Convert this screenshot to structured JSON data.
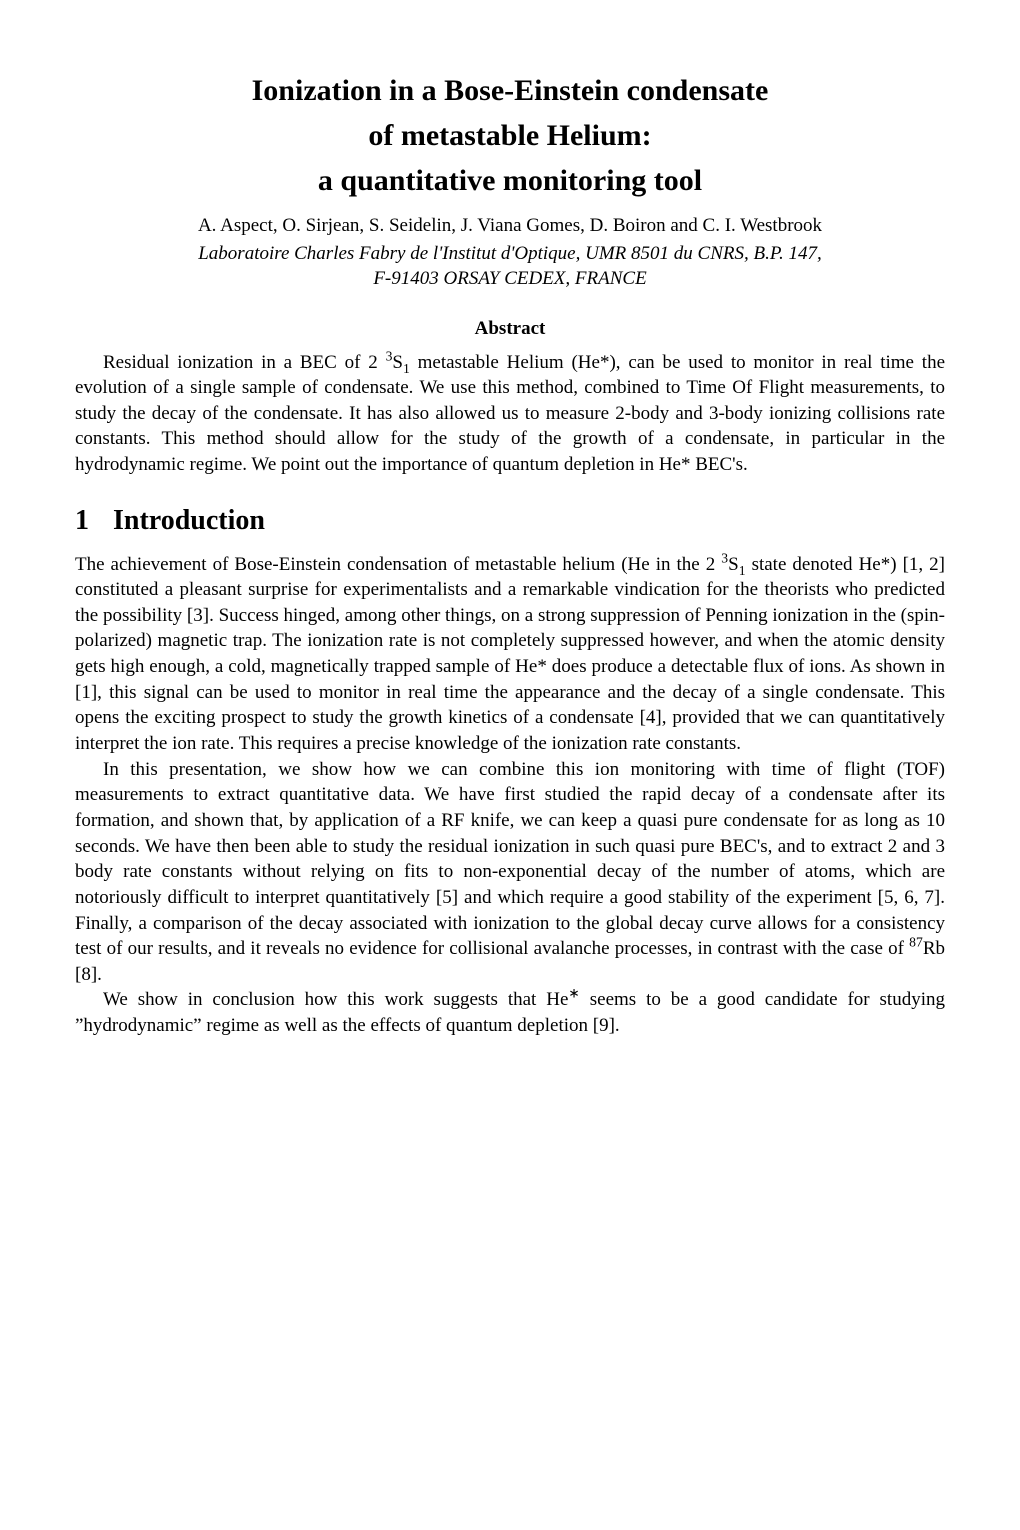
{
  "title_line1": "Ionization in a Bose-Einstein condensate",
  "title_line2": "of metastable Helium:",
  "title_line3": "a quantitative monitoring tool",
  "authors": "A. Aspect, O. Sirjean, S. Seidelin, J. Viana Gomes, D. Boiron and C. I. Westbrook",
  "affil_line1": "Laboratoire Charles Fabry de l'Institut d'Optique, UMR 8501 du CNRS, B.P. 147,",
  "affil_line2": "F-91403 ORSAY CEDEX, FRANCE",
  "abstract_label": "Abstract",
  "abstract_pre": "Residual ionization in a BEC of 2 ",
  "abstract_state": "S",
  "abstract_post": " metastable Helium (He*), can be used to monitor in real time the evolution of a single sample of condensate. We use this method, combined to Time Of Flight measurements, to study the decay of the condensate. It has also allowed us to measure 2-body and 3-body ionizing collisions rate constants. This method should allow for the study of the growth of a condensate, in particular in the hydrodynamic regime. We point out the importance of quantum depletion in He* BEC's.",
  "section_num": "1",
  "section_title": "Introduction",
  "p1_pre": "The achievement of Bose-Einstein condensation of metastable helium (He in the 2 ",
  "p1_state": "S",
  "p1_post": " state denoted He*) [1, 2] constituted a pleasant surprise for experimentalists and a remarkable vindication for the theorists who predicted the possibility [3]. Success hinged, among other things, on a strong suppression of Penning ionization in the (spin-polarized) magnetic trap. The ionization rate is not completely suppressed however, and when the atomic density gets high enough, a cold, magnetically trapped sample of He* does produce a detectable flux of ions. As shown in [1], this signal can be used to monitor in real time the appearance and the decay of a single condensate. This opens the exciting prospect to study the growth kinetics of a condensate [4], provided that we can quantitatively interpret the ion rate. This requires a precise knowledge of the ionization rate constants.",
  "p2_pre": "In this presentation, we show how we can combine this ion monitoring with time of flight (TOF) measurements to extract quantitative data. We have first studied the rapid decay of a condensate after its formation, and shown that, by application of a RF knife, we can keep a quasi pure condensate for as long as 10 seconds. We have then been able to study the residual ionization in such quasi pure BEC's, and to extract 2 and 3 body rate constants without relying on fits to non-exponential decay of the number of atoms, which are notoriously difficult to interpret quantitatively [5] and which require a good stability of the experiment [5, 6, 7]. Finally, a comparison of the decay associated with ionization to the global decay curve allows for a consistency test of our results, and it reveals no evidence for collisional avalanche processes, in contrast with the case of ",
  "p2_iso": "Rb [8].",
  "p3_pre": "We show in conclusion how this work suggests that He",
  "p3_post": " seems to be a good candidate for studying ”hydrodynamic” regime as well as the effects of quantum depletion [9]."
}
